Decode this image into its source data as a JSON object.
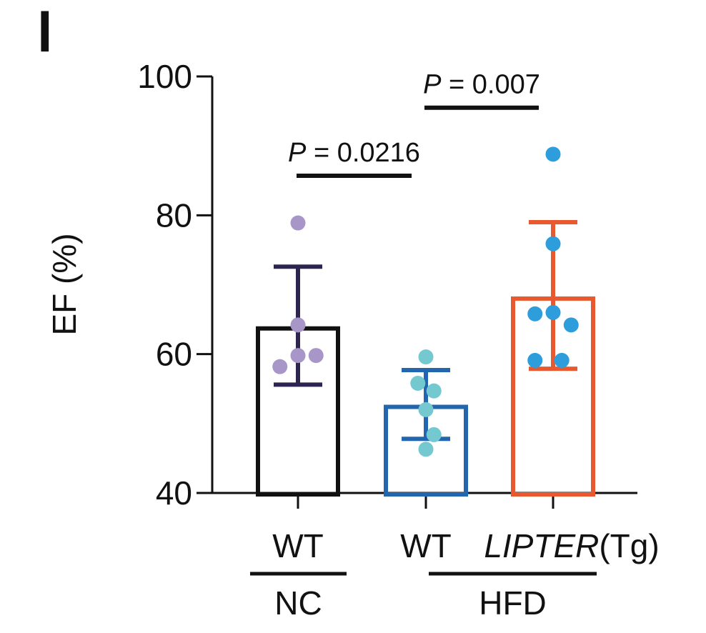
{
  "panel_label": "l",
  "chart_data": {
    "type": "bar",
    "ylabel": "EF (%)",
    "ylim": [
      40,
      100
    ],
    "yticks": [
      40,
      60,
      80,
      100
    ],
    "categories": [
      "WT",
      "WT",
      "LIPTER(Tg)"
    ],
    "category_labels": [
      {
        "main": "WT",
        "italic": "",
        "suffix": ""
      },
      {
        "main": "WT",
        "italic": "",
        "suffix": ""
      },
      {
        "main": "",
        "italic": "LIPTER",
        "suffix": "(Tg)"
      }
    ],
    "groups": [
      {
        "label": "NC",
        "categories": [
          0
        ]
      },
      {
        "label": "HFD",
        "categories": [
          1,
          2
        ]
      }
    ],
    "series": [
      {
        "values": [
          63.7,
          52.4,
          68.0
        ],
        "error_upper": [
          72.6,
          57.7,
          79.0
        ],
        "error_lower": [
          55.6,
          47.8,
          57.9
        ],
        "bar_colors": [
          "#111111",
          "#2166ae",
          "#e8592f"
        ],
        "error_colors": [
          "#2d2550",
          "#2166ae",
          "#e8592f"
        ],
        "point_colors": [
          "#a896c8",
          "#74c8cf",
          "#2d9ddc"
        ],
        "points": [
          [
            [
              -0.27,
              58.2
            ],
            [
              0.0,
              59.8
            ],
            [
              0.27,
              59.8
            ],
            [
              0.0,
              64.2
            ],
            [
              0.0,
              78.9
            ]
          ],
          [
            [
              0.0,
              46.3
            ],
            [
              0.12,
              48.4
            ],
            [
              0.0,
              52.0
            ],
            [
              -0.12,
              55.8
            ],
            [
              0.12,
              54.7
            ],
            [
              0.0,
              59.6
            ]
          ],
          [
            [
              -0.27,
              59.1
            ],
            [
              0.13,
              59.1
            ],
            [
              -0.27,
              65.8
            ],
            [
              0.0,
              66.0
            ],
            [
              0.27,
              64.2
            ],
            [
              0.0,
              75.9
            ],
            [
              0.0,
              88.8
            ]
          ]
        ]
      }
    ],
    "comparisons": [
      {
        "from": 0,
        "to": 1,
        "y": 85.7,
        "label_italic": "P",
        "label_rest": " = 0.0216"
      },
      {
        "from": 1,
        "to": 2,
        "y": 95.5,
        "label_italic": "P",
        "label_rest": " = 0.007"
      }
    ]
  }
}
